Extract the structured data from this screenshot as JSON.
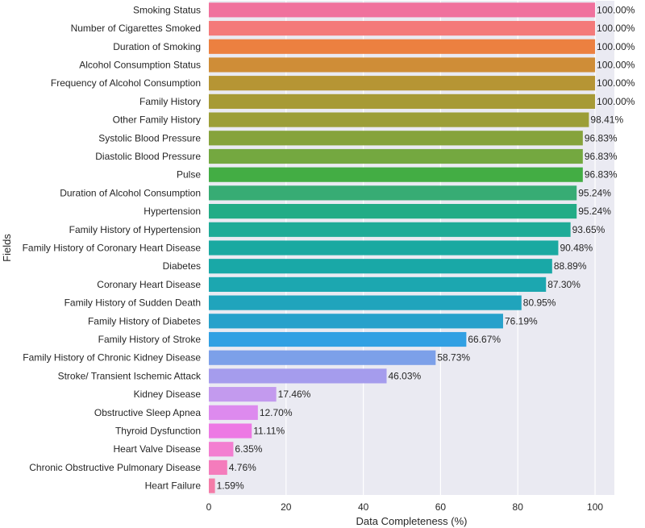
{
  "chart_data": {
    "type": "bar",
    "orientation": "horizontal",
    "xlabel": "Data Completeness (%)",
    "ylabel": "Fields",
    "xlim": [
      0,
      105
    ],
    "xticks": [
      0,
      20,
      40,
      60,
      80,
      100
    ],
    "grid": true,
    "value_format": "percent_2dp",
    "categories": [
      "Smoking Status",
      "Number of Cigarettes Smoked",
      "Duration of Smoking",
      "Alcohol Consumption Status",
      "Frequency of Alcohol Consumption",
      "Family History",
      "Other Family History",
      "Systolic Blood Pressure",
      "Diastolic Blood Pressure",
      "Pulse",
      "Duration of Alcohol Consumption",
      "Hypertension",
      "Family History of Hypertension",
      "Family History of Coronary Heart Disease",
      "Diabetes",
      "Coronary Heart Disease",
      "Family History of Sudden Death",
      "Family History of Diabetes",
      "Family History of Stroke",
      "Family History of Chronic Kidney Disease",
      "Stroke/ Transient Ischemic Attack",
      "Kidney Disease",
      "Obstructive Sleep Apnea",
      "Thyroid Dysfunction",
      "Heart Valve Disease",
      "Chronic Obstructive Pulmonary Disease",
      "Heart Failure"
    ],
    "values": [
      100.0,
      100.0,
      100.0,
      100.0,
      100.0,
      100.0,
      98.41,
      96.83,
      96.83,
      96.83,
      95.24,
      95.24,
      93.65,
      90.48,
      88.89,
      87.3,
      80.95,
      76.19,
      66.67,
      58.73,
      46.03,
      17.46,
      12.7,
      11.11,
      6.35,
      4.76,
      1.59
    ],
    "value_labels": [
      "100.00%",
      "100.00%",
      "100.00%",
      "100.00%",
      "100.00%",
      "100.00%",
      "98.41%",
      "96.83%",
      "96.83%",
      "96.83%",
      "95.24%",
      "95.24%",
      "93.65%",
      "90.48%",
      "88.89%",
      "87.30%",
      "80.95%",
      "76.19%",
      "66.67%",
      "58.73%",
      "46.03%",
      "17.46%",
      "12.70%",
      "11.11%",
      "6.35%",
      "4.76%",
      "1.59%"
    ],
    "colors": [
      "#f0719d",
      "#f47a7a",
      "#ec8040",
      "#cf8d37",
      "#b69534",
      "#a79a36",
      "#9c9e37",
      "#86a33c",
      "#74a840",
      "#43ad44",
      "#37ac74",
      "#22ac86",
      "#1eab97",
      "#1aa9a1",
      "#19a8a7",
      "#1ca7b0",
      "#20a4bc",
      "#27a1cb",
      "#31a0e3",
      "#7ca0e9",
      "#a59ced",
      "#c39aee",
      "#dd8aee",
      "#ed79e4",
      "#f37ed1",
      "#f47cbc",
      "#f47ca8"
    ],
    "background_color": "#eaeaf2",
    "grid_color": "#ffffff"
  }
}
